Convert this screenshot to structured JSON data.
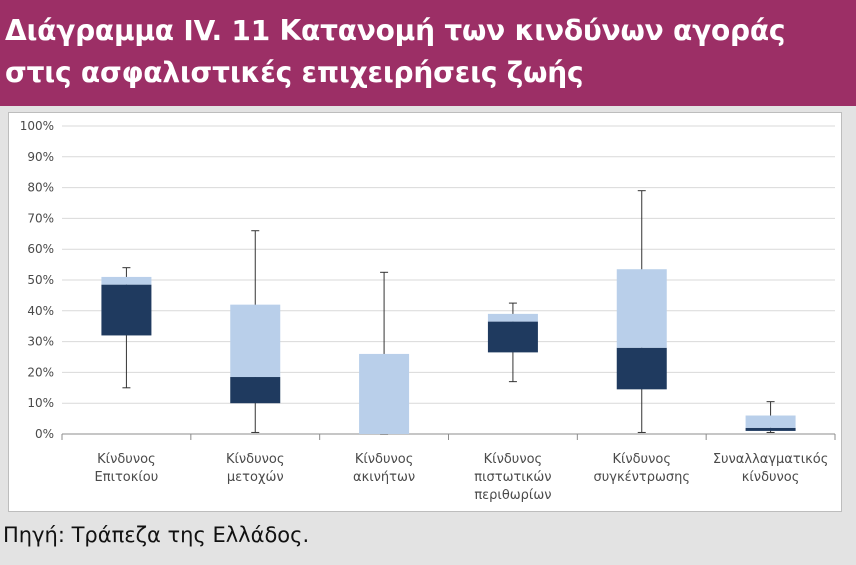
{
  "title": {
    "line1": "Διάγραμμα IV. 11 Κατανομή των κινδύνων αγοράς",
    "line2": "στις ασφαλιστικές επιχειρήσεις ζωής"
  },
  "source": "Πηγή: Τράπεζα της Ελλάδος.",
  "colors": {
    "title_bg": "#9c2f66",
    "box_lower": "#1f3a5f",
    "box_upper": "#b9cfea",
    "whisker": "#333333",
    "grid": "#d9d9d9"
  },
  "chart_data": {
    "type": "box",
    "ylim": [
      0,
      100
    ],
    "y_ticks": [
      "0%",
      "10%",
      "20%",
      "30%",
      "40%",
      "50%",
      "60%",
      "70%",
      "80%",
      "90%",
      "100%"
    ],
    "y_tick_values": [
      0,
      10,
      20,
      30,
      40,
      50,
      60,
      70,
      80,
      90,
      100
    ],
    "categories": [
      [
        "Κίνδυνος",
        "Επιτοκίου"
      ],
      [
        "Κίνδυνος",
        "μετοχών"
      ],
      [
        "Κίνδυνος",
        "ακινήτων"
      ],
      [
        "Κίνδυνος",
        "πιστωτικών",
        "περιθωρίων"
      ],
      [
        "Κίνδυνος",
        "συγκέντρωσης"
      ],
      [
        "Συναλλαγματικός",
        "κίνδυνος"
      ]
    ],
    "boxes": [
      {
        "min": 15,
        "q1": 32,
        "median": 48.5,
        "q3": 51,
        "max": 54
      },
      {
        "min": 0.5,
        "q1": 10,
        "median": 18.5,
        "q3": 42,
        "max": 66
      },
      {
        "min": 0,
        "q1": 0,
        "median": 0,
        "q3": 26,
        "max": 52.5
      },
      {
        "min": 17,
        "q1": 26.5,
        "median": 36.5,
        "q3": 39,
        "max": 42.5
      },
      {
        "min": 0.5,
        "q1": 14.5,
        "median": 28,
        "q3": 53.5,
        "max": 79
      },
      {
        "min": 0.5,
        "q1": 1,
        "median": 2,
        "q3": 6,
        "max": 10.5
      }
    ]
  }
}
